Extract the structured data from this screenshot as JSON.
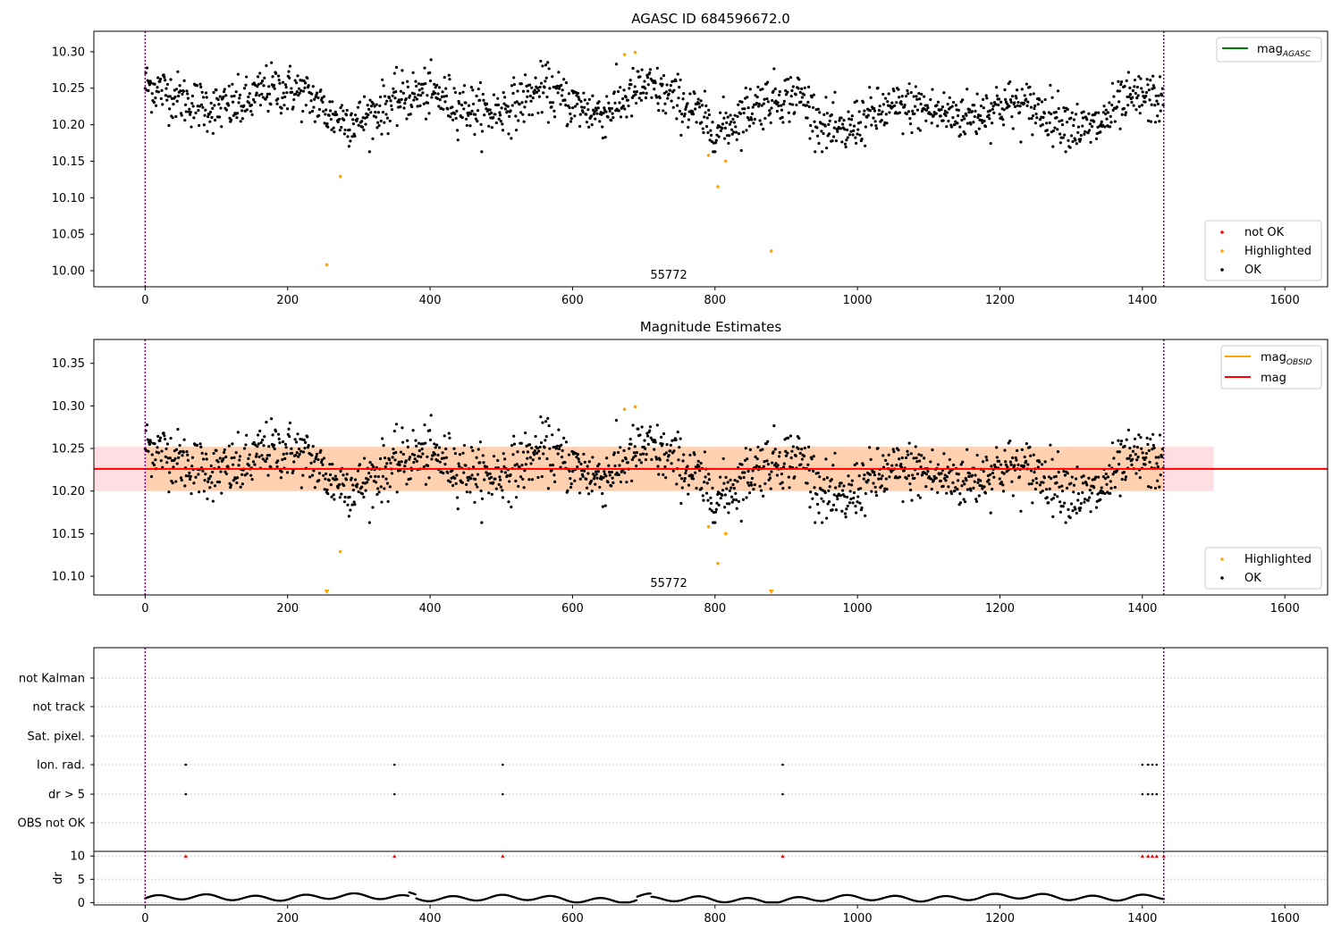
{
  "chart_data": [
    {
      "type": "scatter",
      "title": "AGASC ID 684596672.0",
      "xlim": [
        -72,
        1660
      ],
      "ylim": [
        9.978,
        10.328
      ],
      "xticks": [
        0,
        200,
        400,
        600,
        800,
        1000,
        1200,
        1400,
        1600
      ],
      "yticks": [
        10.0,
        10.05,
        10.1,
        10.15,
        10.2,
        10.25,
        10.3
      ],
      "ytick_labels": [
        "10.00",
        "10.05",
        "10.10",
        "10.15",
        "10.20",
        "10.25",
        "10.30"
      ],
      "vlines": [
        0,
        1430
      ],
      "vline_color": "#800080",
      "obsid_label": {
        "text": "55772",
        "x": 715
      },
      "legend_upper": [
        {
          "label": "mag",
          "sub": "AGASC",
          "color": "#008000"
        }
      ],
      "legend_lower": [
        {
          "label": "not OK",
          "color": "#ff0000"
        },
        {
          "label": "Highlighted",
          "color": "#ffa500"
        },
        {
          "label": "OK",
          "color": "#000000"
        }
      ],
      "highlighted": [
        [
          255,
          10.008
        ],
        [
          274,
          10.129
        ],
        [
          673,
          10.296
        ],
        [
          688,
          10.299
        ],
        [
          791,
          10.158
        ],
        [
          804,
          10.115
        ],
        [
          815,
          10.15
        ],
        [
          879,
          10.027
        ]
      ]
    },
    {
      "type": "scatter",
      "title": "Magnitude Estimates",
      "xlim": [
        -72,
        1660
      ],
      "ylim": [
        10.078,
        10.378
      ],
      "xticks": [
        0,
        200,
        400,
        600,
        800,
        1000,
        1200,
        1400,
        1600
      ],
      "yticks": [
        10.1,
        10.15,
        10.2,
        10.25,
        10.3,
        10.35
      ],
      "ytick_labels": [
        "10.10",
        "10.15",
        "10.20",
        "10.25",
        "10.30",
        "10.35"
      ],
      "vlines": [
        0,
        1430
      ],
      "mag": 10.226,
      "band_outer": [
        10.2,
        10.252,
        -72,
        1500
      ],
      "band_inner": [
        10.2,
        10.252,
        0,
        1430
      ],
      "obsid_label": {
        "text": "55772",
        "x": 715
      },
      "legend_upper": [
        {
          "label": "mag",
          "sub": "OBSID",
          "color": "#ffa500"
        },
        {
          "label": "mag",
          "sub": "",
          "color": "#ff0000"
        }
      ],
      "legend_lower": [
        {
          "label": "Highlighted",
          "color": "#ffa500"
        },
        {
          "label": "OK",
          "color": "#000000"
        }
      ],
      "highlighted": [
        [
          274,
          10.129
        ],
        [
          673,
          10.296
        ],
        [
          688,
          10.299
        ],
        [
          791,
          10.158
        ],
        [
          804,
          10.115
        ],
        [
          815,
          10.15
        ]
      ],
      "out_of_range_markers": [
        255,
        879
      ]
    },
    {
      "type": "scatter",
      "title": "",
      "xlim": [
        -72,
        1660
      ],
      "xticks": [
        0,
        200,
        400,
        600,
        800,
        1000,
        1200,
        1400,
        1600
      ],
      "vlines": [
        0,
        1430
      ],
      "flag_rows": [
        "not Kalman",
        "not track",
        "Sat. pixel.",
        "Ion. rad.",
        "dr > 5",
        "OBS not OK"
      ],
      "flag_points": {
        "Ion. rad.": [
          57,
          350,
          502,
          895,
          1400,
          1408,
          1414,
          1420
        ],
        "dr > 5": [
          57,
          350,
          502,
          895,
          1400,
          1408,
          1414,
          1420
        ]
      },
      "dr_ylabel": "dr",
      "dr_yticks": [
        0,
        5,
        10
      ],
      "dr_ylim": [
        -0.5,
        11
      ],
      "dr_clipped_x": [
        57,
        350,
        502,
        895,
        1400,
        1408,
        1414,
        1420,
        1430
      ]
    }
  ]
}
